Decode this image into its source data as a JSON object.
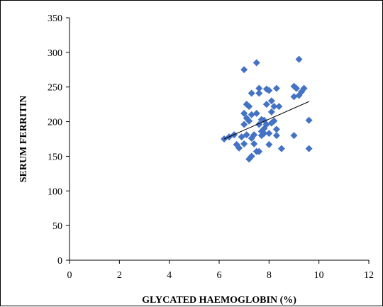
{
  "chart_data": {
    "type": "scatter",
    "title": "",
    "xlabel": "GLYCATED HAEMOGLOBIN (%)",
    "ylabel": "SERUM FERRITIN",
    "xlim": [
      0,
      12
    ],
    "ylim": [
      0,
      350
    ],
    "x_ticks": [
      0,
      2,
      4,
      6,
      8,
      10,
      12
    ],
    "y_ticks": [
      0,
      50,
      100,
      150,
      200,
      250,
      300,
      350
    ],
    "x_tick_labels": [
      "0",
      "2",
      "4",
      "6",
      "8",
      "10",
      "12"
    ],
    "y_tick_labels": [
      "0",
      "50",
      "100",
      "150",
      "200",
      "250",
      "300",
      "350"
    ],
    "grid": false,
    "legend": "none",
    "marker": "diamond",
    "marker_color": "#4472C4",
    "trendline": {
      "type": "linear",
      "x": [
        6.2,
        9.6
      ],
      "y": [
        175,
        229
      ]
    },
    "points": [
      [
        6.2,
        175
      ],
      [
        6.4,
        178
      ],
      [
        6.6,
        181
      ],
      [
        6.7,
        167
      ],
      [
        6.8,
        162
      ],
      [
        6.9,
        178
      ],
      [
        7.0,
        275
      ],
      [
        7.0,
        212
      ],
      [
        7.0,
        196
      ],
      [
        7.0,
        168
      ],
      [
        7.1,
        225
      ],
      [
        7.1,
        205
      ],
      [
        7.1,
        181
      ],
      [
        7.2,
        222
      ],
      [
        7.2,
        201
      ],
      [
        7.2,
        146
      ],
      [
        7.3,
        241
      ],
      [
        7.3,
        210
      ],
      [
        7.3,
        176
      ],
      [
        7.3,
        150
      ],
      [
        7.4,
        181
      ],
      [
        7.4,
        168
      ],
      [
        7.5,
        285
      ],
      [
        7.5,
        212
      ],
      [
        7.5,
        157
      ],
      [
        7.6,
        248
      ],
      [
        7.6,
        241
      ],
      [
        7.6,
        196
      ],
      [
        7.6,
        157
      ],
      [
        7.7,
        203
      ],
      [
        7.7,
        186
      ],
      [
        7.7,
        180
      ],
      [
        7.8,
        202
      ],
      [
        7.8,
        190
      ],
      [
        7.8,
        183
      ],
      [
        7.9,
        247
      ],
      [
        7.9,
        225
      ],
      [
        7.9,
        196
      ],
      [
        8.0,
        245
      ],
      [
        8.0,
        183
      ],
      [
        8.0,
        167
      ],
      [
        8.1,
        230
      ],
      [
        8.1,
        214
      ],
      [
        8.1,
        198
      ],
      [
        8.2,
        222
      ],
      [
        8.2,
        201
      ],
      [
        8.3,
        248
      ],
      [
        8.3,
        189
      ],
      [
        8.3,
        180
      ],
      [
        8.4,
        222
      ],
      [
        8.5,
        161
      ],
      [
        9.0,
        251
      ],
      [
        9.0,
        236
      ],
      [
        9.0,
        180
      ],
      [
        9.1,
        248
      ],
      [
        9.2,
        290
      ],
      [
        9.2,
        238
      ],
      [
        9.3,
        243
      ],
      [
        9.4,
        248
      ],
      [
        9.6,
        202
      ],
      [
        9.6,
        161
      ]
    ]
  }
}
